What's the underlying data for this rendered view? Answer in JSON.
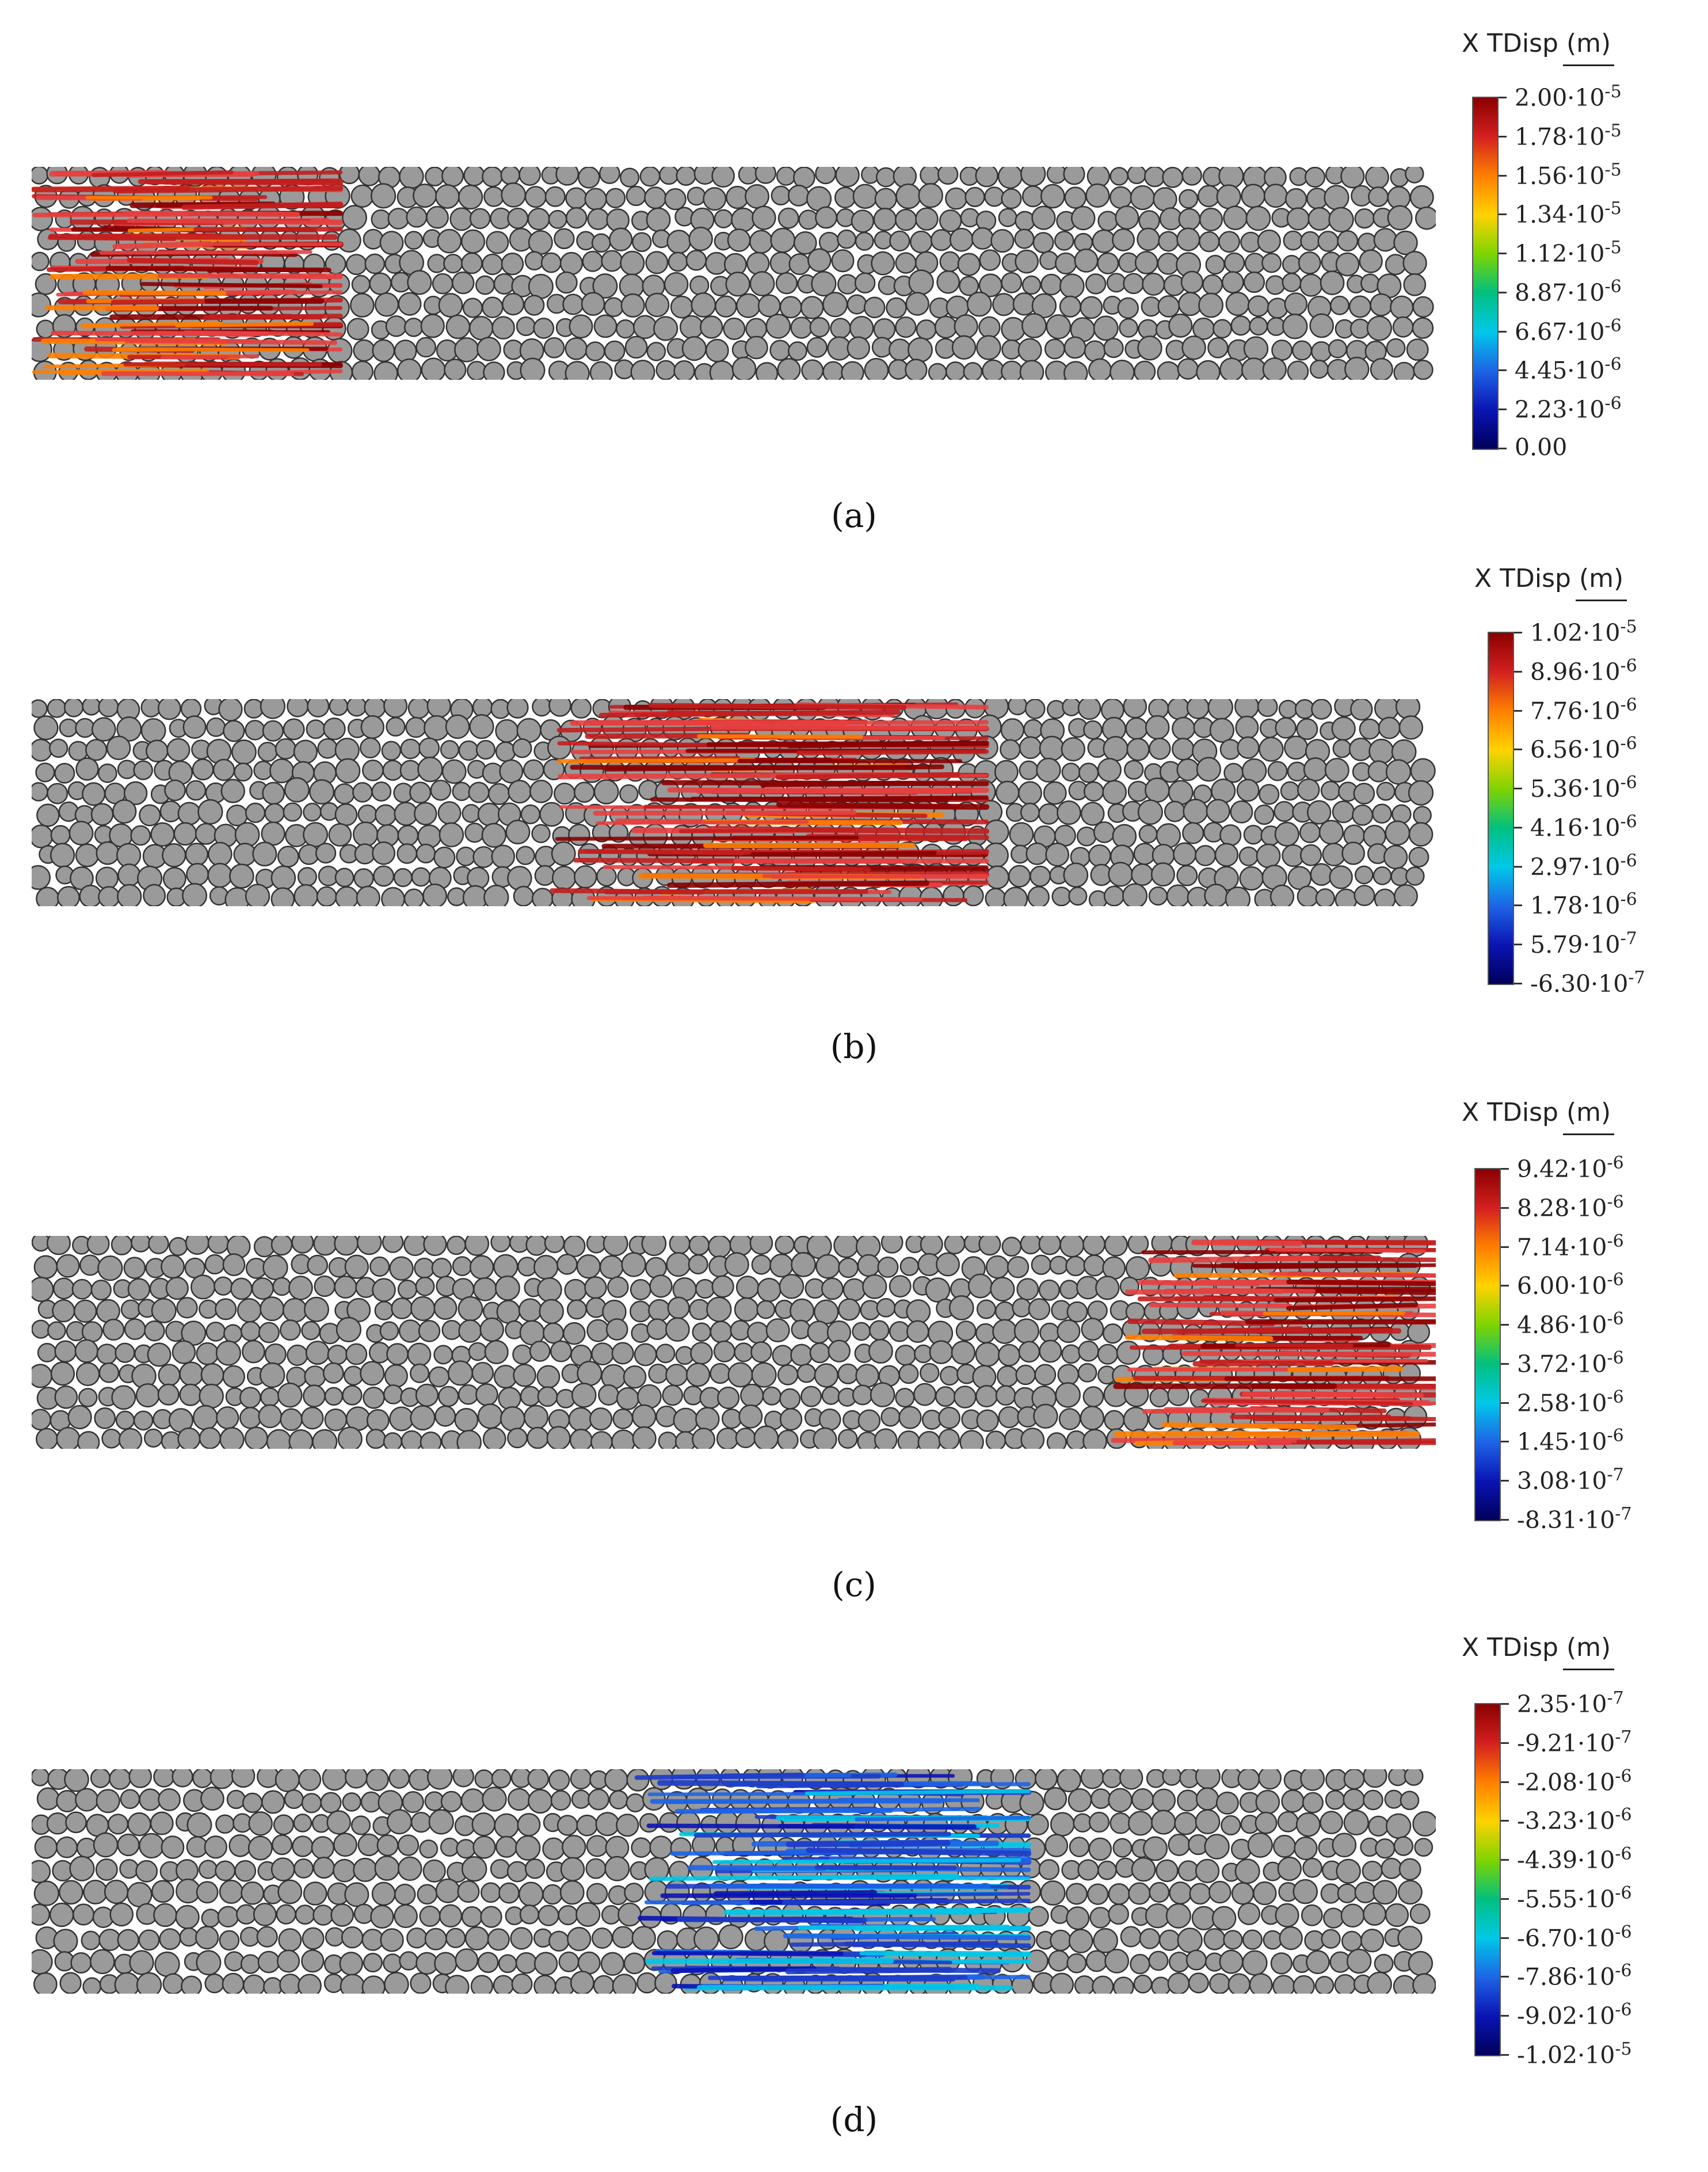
{
  "panels": [
    {
      "id": "a",
      "caption": "(a)",
      "colorbar": {
        "title_prefix": "X TDisp",
        "unit": "(m)",
        "labels": [
          "2.00·10-5",
          "1.78·10-5",
          "1.56·10-5",
          "1.34·10-5",
          "1.12·10-5",
          "8.87·10-6",
          "6.67·10-6",
          "4.45·10-6",
          "2.23·10-6",
          "0.00"
        ],
        "colors": [
          "#8b0000",
          "#d32020",
          "#ff7f00",
          "#ffd200",
          "#7fd400",
          "#00c080",
          "#00c8e8",
          "#1e64e6",
          "#0a14b4",
          "#00005a"
        ]
      },
      "highlight": {
        "from": 0.0,
        "to": 0.22,
        "scheme": "hot"
      }
    },
    {
      "id": "b",
      "caption": "(b)",
      "colorbar": {
        "title_prefix": "X TDisp",
        "unit": "(m)",
        "labels": [
          "1.02·10-5",
          "8.96·10-6",
          "7.76·10-6",
          "6.56·10-6",
          "5.36·10-6",
          "4.16·10-6",
          "2.97·10-6",
          "1.78·10-6",
          "5.79·10-7",
          "-6.30·10-7"
        ],
        "colors": [
          "#8b0000",
          "#d32020",
          "#ff7f00",
          "#ffd200",
          "#7fd400",
          "#00c080",
          "#00c8e8",
          "#1e64e6",
          "#0a14b4",
          "#00005a"
        ]
      },
      "highlight": {
        "from": 0.37,
        "to": 0.68,
        "scheme": "hot"
      }
    },
    {
      "id": "c",
      "caption": "(c)",
      "colorbar": {
        "title_prefix": "X TDisp",
        "unit": "(m)",
        "labels": [
          "9.42·10-6",
          "8.28·10-6",
          "7.14·10-6",
          "6.00·10-6",
          "4.86·10-6",
          "3.72·10-6",
          "2.58·10-6",
          "1.45·10-6",
          "3.08·10-7",
          "-8.31·10-7"
        ],
        "colors": [
          "#8b0000",
          "#d32020",
          "#ff7f00",
          "#ffd200",
          "#7fd400",
          "#00c080",
          "#00c8e8",
          "#1e64e6",
          "#0a14b4",
          "#00005a"
        ]
      },
      "highlight": {
        "from": 0.77,
        "to": 1.0,
        "scheme": "hot"
      }
    },
    {
      "id": "d",
      "caption": "(d)",
      "colorbar": {
        "title_prefix": "X TDisp",
        "unit": "(m)",
        "labels": [
          "2.35·10-7",
          "-9.21·10-7",
          "-2.08·10-6",
          "-3.23·10-6",
          "-4.39·10-6",
          "-5.55·10-6",
          "-6.70·10-6",
          "-7.86·10-6",
          "-9.02·10-6",
          "-1.02·10-5"
        ],
        "colors": [
          "#8b0000",
          "#d32020",
          "#ff7f00",
          "#ffd200",
          "#7fd400",
          "#00c080",
          "#00c8e8",
          "#1e64e6",
          "#0a14b4",
          "#00005a"
        ]
      },
      "highlight": {
        "from": 0.43,
        "to": 0.71,
        "scheme": "cold"
      }
    }
  ]
}
